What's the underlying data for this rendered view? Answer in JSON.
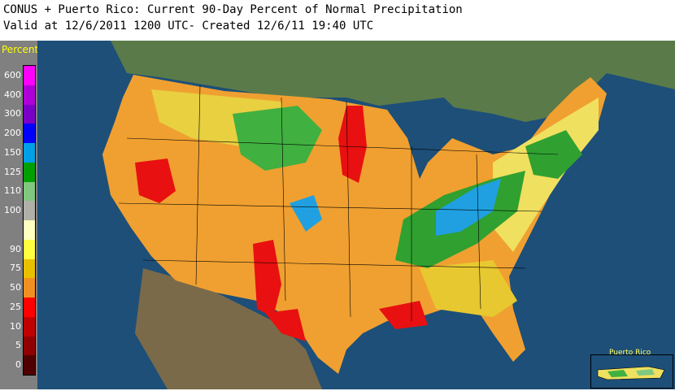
{
  "header": {
    "title": "CONUS + Puerto Rico: Current 90-Day Percent of Normal Precipitation",
    "valid": "Valid at 12/6/2011 1200 UTC- Created 12/6/11 19:40 UTC"
  },
  "legend": {
    "title": "Percent",
    "items": [
      {
        "label": "600",
        "color": "#ff00ff"
      },
      {
        "label": "400",
        "color": "#b000d8"
      },
      {
        "label": "300",
        "color": "#7a00c8"
      },
      {
        "label": "200",
        "color": "#0000ff"
      },
      {
        "label": "150",
        "color": "#00a0e8"
      },
      {
        "label": "125",
        "color": "#00a000"
      },
      {
        "label": "110",
        "color": "#80c880"
      },
      {
        "label": "100",
        "color": "#b0b0a8"
      },
      {
        "label": "",
        "color": "#ffffc0"
      },
      {
        "label": "90",
        "color": "#ffff40"
      },
      {
        "label": "75",
        "color": "#e8c000"
      },
      {
        "label": "50",
        "color": "#f09020"
      },
      {
        "label": "25",
        "color": "#ff0000"
      },
      {
        "label": "10",
        "color": "#c00000"
      },
      {
        "label": "5",
        "color": "#900000"
      },
      {
        "label": "0",
        "color": "#500000"
      }
    ]
  },
  "map": {
    "ocean_color": "#1d4f78",
    "land_color": "#f0a030",
    "inset_label": "Puerto Rico"
  }
}
